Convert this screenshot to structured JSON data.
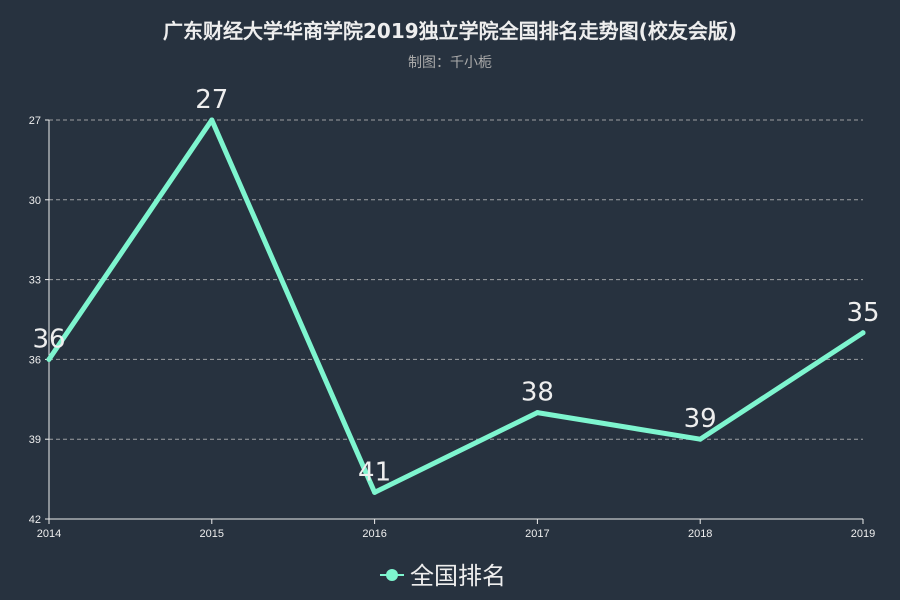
{
  "chart_data": {
    "type": "line",
    "title": "广东财经大学华商学院2019独立学院全国排名走势图(校友会版)",
    "subtitle": "制图：千小栀",
    "x": [
      "2014",
      "2015",
      "2016",
      "2017",
      "2018",
      "2019"
    ],
    "series": [
      {
        "name": "全国排名",
        "values": [
          36,
          27,
          41,
          38,
          39,
          35
        ],
        "color": "#7ef5cf"
      }
    ],
    "y_ticks": [
      "27",
      "30",
      "33",
      "36",
      "39",
      "42"
    ],
    "ylim": [
      27,
      42
    ],
    "y_inverted": true,
    "grid": true,
    "legend_position": "bottom-center"
  },
  "colors": {
    "background": "#27323f",
    "line": "#7ef5cf",
    "grid": "#bbbbbb",
    "text": "#eeeeee"
  }
}
